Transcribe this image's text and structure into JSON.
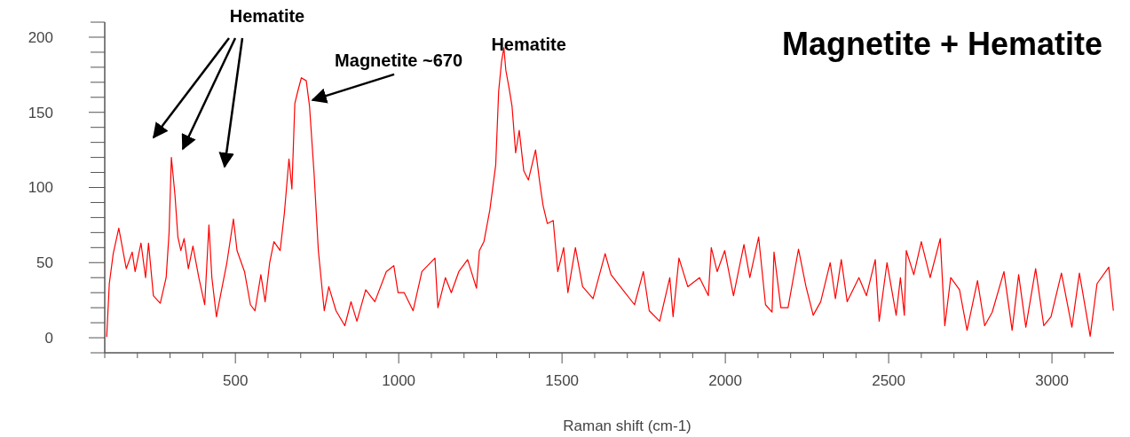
{
  "chart_data": {
    "type": "line",
    "title": "Magnetite + Hematite",
    "xlabel": "Raman shift (cm-1)",
    "annotations": [
      "Hematite",
      {
        "text": "Magnetite ~670",
        "x": 728,
        "y": 157
      },
      {
        "text": "Hematite",
        "x": 1322,
        "y": 193
      }
    ],
    "xlim": [
      100,
      3190
    ],
    "ylim": [
      -10,
      210
    ],
    "xticks": [
      {
        "value": 100,
        "label": null
      },
      {
        "value": 200,
        "label": null
      },
      {
        "value": 300,
        "label": null
      },
      {
        "value": 400,
        "label": null
      },
      500,
      {
        "value": 600,
        "label": null
      },
      {
        "value": 700,
        "label": null
      },
      {
        "value": 800,
        "label": null
      },
      {
        "value": 900,
        "label": null
      },
      1000,
      {
        "value": 1100,
        "label": null
      },
      {
        "value": 1200,
        "label": null
      },
      {
        "value": 1300,
        "label": null
      },
      {
        "value": 1400,
        "label": null
      },
      1500,
      {
        "value": 1600,
        "label": null
      },
      {
        "value": 1700,
        "label": null
      },
      {
        "value": 1800,
        "label": null
      },
      {
        "value": 1900,
        "label": null
      },
      2000,
      {
        "value": 2100,
        "label": null
      },
      {
        "value": 2200,
        "label": null
      },
      {
        "value": 2300,
        "label": null
      },
      {
        "value": 2400,
        "label": null
      },
      2500,
      {
        "value": 2600,
        "label": null
      },
      {
        "value": 2700,
        "label": null
      },
      {
        "value": 2800,
        "label": null
      },
      {
        "value": 2900,
        "label": null
      },
      3000,
      {
        "value": 3100,
        "label": null
      }
    ],
    "yticks": [
      {
        "value": -10,
        "label": null
      },
      0,
      {
        "value": 10,
        "label": null
      },
      {
        "value": 20,
        "label": null
      },
      {
        "value": 30,
        "label": null
      },
      {
        "value": 40,
        "label": null
      },
      50,
      {
        "value": 60,
        "label": null
      },
      {
        "value": 70,
        "label": null
      },
      {
        "value": 80,
        "label": null
      },
      {
        "value": 90,
        "label": null
      },
      100,
      {
        "value": 110,
        "label": null
      },
      {
        "value": 120,
        "label": null
      },
      {
        "value": 130,
        "label": null
      },
      {
        "value": 140,
        "label": null
      },
      150,
      {
        "value": 160,
        "label": null
      },
      {
        "value": 170,
        "label": null
      },
      {
        "value": 180,
        "label": null
      },
      {
        "value": 190,
        "label": null
      },
      200,
      {
        "value": 210,
        "label": null
      }
    ],
    "grid": false,
    "marker": "none",
    "line_style": "solid",
    "series": [
      {
        "color": "#ff0000",
        "x": [
          106,
          114,
          126,
          143,
          166,
          184,
          193,
          211,
          225,
          234,
          249,
          270,
          288,
          297,
          304,
          315,
          324,
          333,
          343,
          356,
          370,
          388,
          406,
          419,
          428,
          442,
          456,
          474,
          494,
          505,
          528,
          546,
          560,
          578,
          591,
          605,
          618,
          637,
          650,
          664,
          673,
          682,
          691,
          702,
          717,
          727,
          741,
          754,
          772,
          786,
          808,
          835,
          854,
          872,
          899,
          927,
          962,
          985,
          998,
          1017,
          1044,
          1071,
          1111,
          1120,
          1143,
          1161,
          1184,
          1211,
          1238,
          1247,
          1261,
          1279,
          1297,
          1306,
          1315,
          1322,
          1328,
          1338,
          1347,
          1358,
          1369,
          1383,
          1397,
          1419,
          1432,
          1442,
          1455,
          1473,
          1487,
          1505,
          1518,
          1541,
          1563,
          1595,
          1632,
          1650,
          1686,
          1722,
          1749,
          1767,
          1799,
          1830,
          1840,
          1858,
          1885,
          1921,
          1948,
          1957,
          1975,
          1998,
          2025,
          2057,
          2075,
          2102,
          2123,
          2143,
          2149,
          2170,
          2192,
          2224,
          2247,
          2269,
          2292,
          2321,
          2337,
          2355,
          2373,
          2409,
          2432,
          2459,
          2471,
          2495,
          2523,
          2536,
          2548,
          2554,
          2577,
          2600,
          2627,
          2658,
          2672,
          2690,
          2717,
          2740,
          2772,
          2794,
          2817,
          2853,
          2878,
          2898,
          2920,
          2950,
          2975,
          2997,
          3029,
          3061,
          3084,
          3117,
          3138,
          3174,
          3188
        ],
        "values": [
          0.6,
          36,
          56,
          73,
          46,
          57,
          44,
          63,
          40,
          63,
          28,
          23,
          40,
          70,
          120,
          95,
          67,
          58,
          66,
          46,
          61,
          40,
          22,
          75,
          40,
          14,
          30,
          50,
          79,
          58,
          44,
          22,
          18,
          42,
          24,
          50,
          64,
          58,
          83,
          119,
          99,
          156,
          164,
          173,
          171,
          154,
          109,
          58,
          18,
          34,
          18,
          8,
          24,
          11,
          32,
          24,
          44,
          48,
          30,
          30,
          18,
          44,
          53,
          20,
          40,
          30,
          44,
          52,
          33,
          58,
          64,
          85,
          115,
          164,
          184,
          193,
          178,
          166,
          154,
          123,
          138,
          111,
          105,
          125,
          103,
          88,
          76,
          78,
          44,
          60,
          30,
          60,
          34,
          26,
          56,
          42,
          32,
          22,
          44,
          18,
          11,
          40,
          14,
          53,
          34,
          40,
          28,
          60,
          44,
          58,
          28,
          62,
          40,
          67,
          22,
          17,
          57,
          20,
          20,
          59,
          34,
          15,
          24,
          50,
          26,
          52,
          24,
          40,
          28,
          52,
          11,
          50,
          15,
          40,
          15,
          58,
          42,
          64,
          40,
          66,
          8,
          40,
          32,
          5,
          38,
          8,
          17,
          44,
          5,
          42,
          7,
          46,
          8,
          14,
          43,
          7,
          43,
          1,
          36,
          47,
          18
        ]
      }
    ]
  }
}
